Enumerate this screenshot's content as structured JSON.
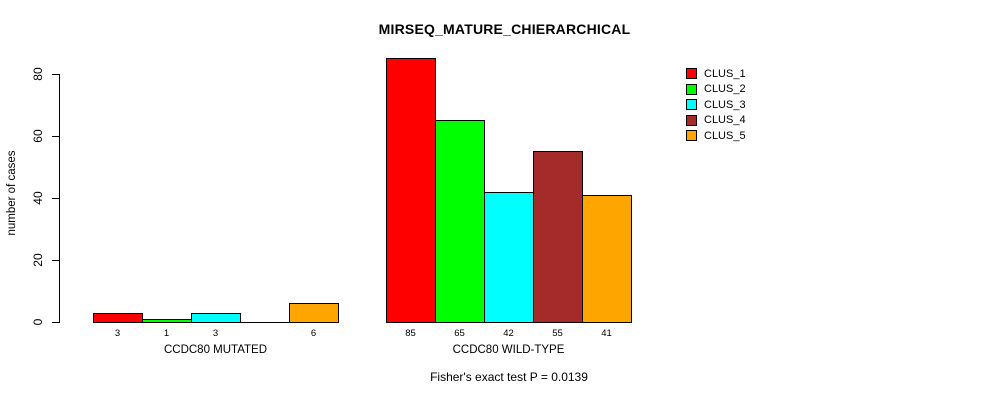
{
  "title": "MIRSEQ_MATURE_CHIERARCHICAL",
  "subtitle": "Fisher's exact test P = 0.0139",
  "chart_data": {
    "type": "bar",
    "title": "MIRSEQ_MATURE_CHIERARCHICAL",
    "ylabel": "number of cases",
    "xlabel": "",
    "ylim": [
      0,
      85
    ],
    "yticks": [
      0,
      20,
      40,
      60,
      80
    ],
    "grid": false,
    "legend_position": "right",
    "legend": [
      {
        "label": "CLUS_1",
        "color": "#FF0000"
      },
      {
        "label": "CLUS_2",
        "color": "#00FF00"
      },
      {
        "label": "CLUS_3",
        "color": "#00FFFF"
      },
      {
        "label": "CLUS_4",
        "color": "#A52A2A"
      },
      {
        "label": "CLUS_5",
        "color": "#FFA500"
      }
    ],
    "series_colors": [
      "#FF0000",
      "#00FF00",
      "#00FFFF",
      "#A52A2A",
      "#FFA500"
    ],
    "groups": [
      {
        "label": "CCDC80 MUTATED",
        "values": [
          3,
          1,
          3,
          0,
          6
        ],
        "value_labels": [
          "3",
          "1",
          "3",
          "",
          "6"
        ]
      },
      {
        "label": "CCDC80 WILD-TYPE",
        "values": [
          85,
          65,
          42,
          55,
          41
        ],
        "value_labels": [
          "85",
          "65",
          "42",
          "55",
          "41"
        ]
      }
    ],
    "annotation": "Fisher's exact test P = 0.0139"
  },
  "colors": {
    "background": "#FFFFFF",
    "axis": "#000000",
    "text": "#000000"
  }
}
